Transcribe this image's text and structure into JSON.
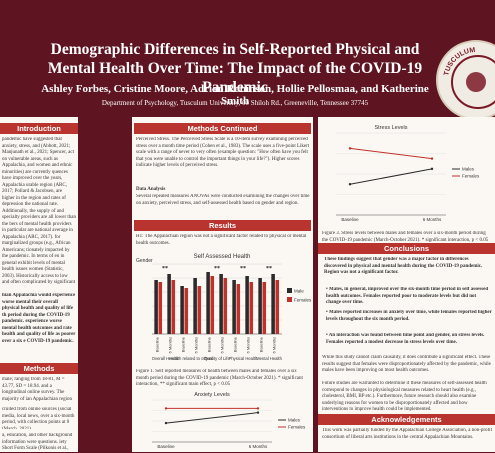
{
  "poster": {
    "title": "Demographic Differences in Self-Reported Physical and Mental Health Over Time: The Impact of the COVID-19 Pandemic",
    "authors": "Ashley Forbes, Cristine Moore, Adrian Robinson, Hollie Pellosmaa, and Katherine Smith",
    "department": "Department of Psychology, Tusculum University, 60 Shiloh Rd., Greeneville, Tennessee 37745",
    "seal_text": "TUSCULUM UNIVERSITY"
  },
  "left": {
    "intro_header": "Introduction",
    "intro_text": "pandemic have suggested that anxiety, stress, and (Abbott, 2021; Manjunath et al., 2021; Spencer, act on vulnerable areas, such as Appalachia, and women and ethnic minorities) are currently quences have improved over the years, Appalachia urable region (ARC, 2017; Pollard & Jacobsen, are higher in the region and rates of depression the national rate. Additionally, the supply of and specialty providers are all lower than the bers of mental health providers in particular are national average in Appalachia (ARC, 2017). for marginalized groups (e.g., African Americans; tionately impacted by the pandemic. In terms of en in general exhibit levels of mental health issues women (Statistic, 2003). Historically access to low and often complicated by significant travel to Telehealth alternatives, particularly in the al., 2017; Stamm, 2003). Despite evidence that disproportionately impacted by the pandemic, the sical and mental health outcomes within these",
    "hypotheses_bold": "hian Appalachia would experience worse mental their overall physical health and quality of life th period during the COVID-19 pandemic. experience worse mental health outcomes and rate health and quality of life as poorer over a six e COVID-19 pandemic.",
    "methods_header": "Methods",
    "methods_text": "male; ranging from 18-81, M = 43.77, SD = 18.94. and a longitudinal online survey. The majority of ian Appalachian region (n = 1 ...)",
    "methods_text2": "cruited from online sources (social media, local news, over a six-month period, with collection points at 0 (March, 2021).",
    "methods_text3": "a, education, and other background information were questions. iety Short Form Scale (Pilkonis et al., 2011) is an"
  },
  "middle": {
    "methods_cont_header": "Methods Continued",
    "methods_cont_text": "Perceived Stress. The Perceived Stress Scale is a 10-item survey examining perceived stress over a month time period (Cohen et al., 1983). The scale uses a five-point Likert scale with a range of never to very often (example question: \"How often have you felt that you were unable to control the important things in your life?\"). Higher scores indicate higher levels of perceived stress.",
    "data_analysis_title": "Data Analysis",
    "data_analysis_text": "Several repeated measures ANOVAs were conducted examining the changes over time on anxiety, perceived stress, and self-assessed health based on gender and region.",
    "results_header": "Results",
    "results_text": "H1: The Appalachian region was not a significant factor related to physical or mental health outcomes.",
    "figure1_caption": "Figure 1. Self reported measures of health between males and females over a six month period during the COVID-19 pandemic (March-October 2021). * significant interaction, ** significant main effect, p < 0.05"
  },
  "right": {
    "figure3_caption": "Figure 3. Stress levels between males and females over a six-month period during the COVID-19 pandemic (March-October 2021). * significant interaction, p < 0.05",
    "conclusions_header": "Conclusions",
    "conclusions_intro": "These findings suggest that gender was a major factor in differences discovered in physical and mental health during the COVID-19 pandemic. Region was not a significant factor.",
    "bullets": [
      "Males, in general, improved over the six-month time period in self assessed health outcomes. Females reported poor to moderate levels but did not change over time.",
      "Males reported increases in anxiety over time, while females reported higher levels throughout the six month period.",
      "An interaction was found between time point and gender, on stress levels. Females reported a modest decrease in stress levels over time."
    ],
    "discussion_text": "While this study cannot claim causality, it does contribute a significant effect. These results suggest that females were disproportionately affected by the pandemic, while males have been improving on most health outcomes.",
    "future_text": "Future studies are warranted to determine if these measures of self-assessed health correspond to changes in physiological measures related to heart health (e.g., cholesterol, BMI, BP etc.). Furthermore, future research should also examine underlying reasons for women to be disproportionately affected and how interventions to improve health could be implemented.",
    "ack_header": "Acknowledgements",
    "ack_text": "This work was partially funded by the Appalachian College Association, a non-profit consortium of liberal arts institutions in the central Appalachian Mountains."
  },
  "chart_data": [
    {
      "type": "bar",
      "title": "Self Assessed Health",
      "ylabel": "Gender",
      "categories": [
        "Baseline",
        "6 Months",
        "Baseline",
        "6 Months",
        "Baseline",
        "6 Months",
        "Baseline",
        "6 Months",
        "Baseline",
        "6 Months"
      ],
      "groups": [
        "Overall Health",
        "Health related to others",
        "Quality of Life",
        "Physical Health",
        "Mental Health"
      ],
      "group_annotations": [
        "**",
        "",
        "**",
        "**",
        "**"
      ],
      "series": [
        {
          "name": "Male",
          "values": [
            2.7,
            3.0,
            2.4,
            2.8,
            3.1,
            3.0,
            2.7,
            2.9,
            2.8,
            3.0
          ],
          "color": "#2b2b2b"
        },
        {
          "name": "Females",
          "values": [
            2.6,
            2.7,
            2.3,
            2.4,
            2.9,
            2.8,
            2.5,
            2.6,
            2.6,
            2.7
          ],
          "color": "#c0312b"
        }
      ],
      "ylim": [
        0,
        3.5
      ],
      "legend": "right"
    },
    {
      "type": "line",
      "title": "Anxiety Levels",
      "x": [
        "Baseline",
        "6 Months"
      ],
      "series": [
        {
          "name": "Males",
          "values": [
            1.9,
            2.4
          ],
          "color": "#2b2b2b"
        },
        {
          "name": "Females",
          "values": [
            2.6,
            2.6
          ],
          "color": "#c0312b"
        }
      ],
      "legend": "right"
    },
    {
      "type": "line",
      "title": "Stress Levels",
      "x": [
        "Baseline",
        "6 Months"
      ],
      "series": [
        {
          "name": "Males",
          "values": [
            1.6,
            1.9
          ],
          "color": "#2b2b2b"
        },
        {
          "name": "Females",
          "values": [
            2.3,
            2.1
          ],
          "color": "#c0312b"
        }
      ],
      "legend": "right"
    }
  ]
}
